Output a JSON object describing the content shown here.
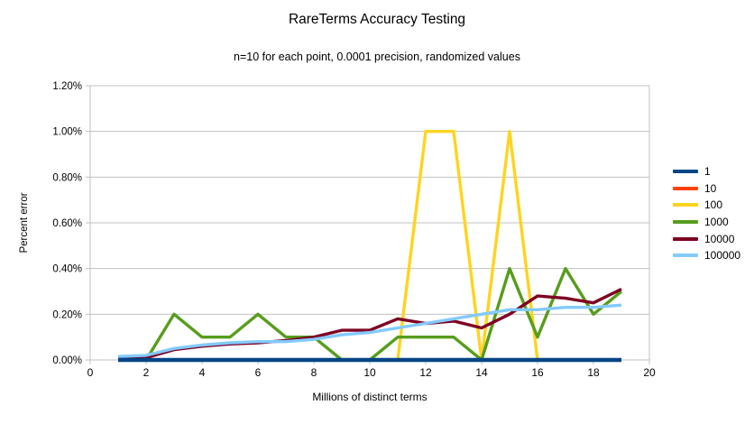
{
  "chart_data": {
    "type": "line",
    "title": "RareTerms Accuracy Testing",
    "subtitle": "n=10 for each point, 0.0001 precision, randomized values",
    "xlabel": "Millions of distinct terms",
    "ylabel": "Percent error",
    "xlim": [
      0,
      20
    ],
    "ylim_percent": [
      0,
      1.2
    ],
    "x_tick_labels": [
      "0",
      "2",
      "4",
      "6",
      "8",
      "10",
      "12",
      "14",
      "16",
      "18",
      "20"
    ],
    "y_tick_labels": [
      "0.00%",
      "0.20%",
      "0.40%",
      "0.60%",
      "0.80%",
      "1.00%",
      "1.20%"
    ],
    "grid": "horizontal",
    "legend_position": "right",
    "x": [
      1,
      2,
      3,
      4,
      5,
      6,
      7,
      8,
      9,
      10,
      11,
      12,
      13,
      14,
      15,
      16,
      17,
      18,
      19
    ],
    "series": [
      {
        "name": "1",
        "color": "#004586",
        "values": [
          0,
          0,
          0,
          0,
          0,
          0,
          0,
          0,
          0,
          0,
          0,
          0,
          0,
          0,
          0,
          0,
          0,
          0,
          0
        ]
      },
      {
        "name": "10",
        "color": "#FF420E",
        "values": [
          0,
          0,
          0,
          0,
          0,
          0,
          0,
          0,
          0,
          0,
          0,
          0,
          0,
          0,
          0,
          0,
          0,
          0,
          0
        ]
      },
      {
        "name": "100",
        "color": "#FFD320",
        "values": [
          0,
          0,
          0,
          0,
          0,
          0,
          0,
          0,
          0,
          0,
          0,
          1.0,
          1.0,
          0,
          1.0,
          0,
          0,
          0,
          0
        ]
      },
      {
        "name": "1000",
        "color": "#579D1C",
        "values": [
          0,
          0,
          0.2,
          0.1,
          0.1,
          0.2,
          0.1,
          0.1,
          0,
          0,
          0.1,
          0.1,
          0.1,
          0,
          0.4,
          0.1,
          0.4,
          0.2,
          0.3
        ]
      },
      {
        "name": "10000",
        "color": "#7E0021",
        "values": [
          0.01,
          0.01,
          0.045,
          0.06,
          0.07,
          0.075,
          0.085,
          0.1,
          0.13,
          0.13,
          0.18,
          0.16,
          0.17,
          0.14,
          0.2,
          0.28,
          0.27,
          0.25,
          0.31
        ]
      },
      {
        "name": "100000",
        "color": "#83CAFF",
        "values": [
          0.015,
          0.02,
          0.05,
          0.065,
          0.075,
          0.08,
          0.08,
          0.09,
          0.11,
          0.12,
          0.14,
          0.16,
          0.18,
          0.2,
          0.22,
          0.22,
          0.23,
          0.23,
          0.24
        ]
      }
    ]
  }
}
